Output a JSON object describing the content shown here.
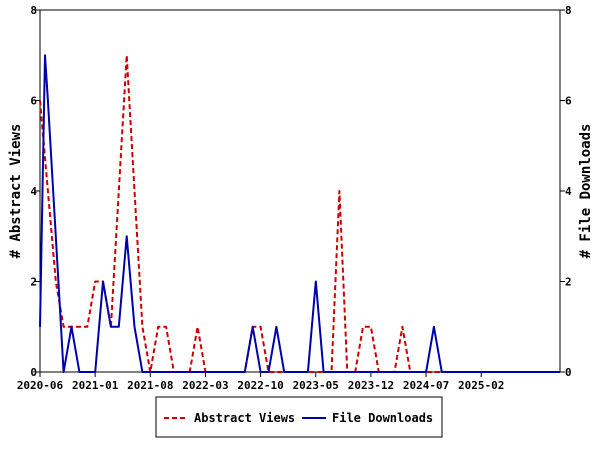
{
  "chart_data": {
    "type": "line",
    "xlabel": "",
    "ylabel_left": "# Abstract Views",
    "ylabel_right": "# File Downloads",
    "ylim": [
      0,
      8
    ],
    "yticks": [
      "0",
      "2",
      "4",
      "6",
      "8"
    ],
    "x_tick_labels": [
      "2020-06",
      "2021-01",
      "2021-08",
      "2022-03",
      "2022-10",
      "2023-05",
      "2023-12",
      "2024-07",
      "2025-02"
    ],
    "x_start": "2020-06",
    "x_end": "2025-12",
    "legend_position": "bottom-center",
    "grid": false,
    "series": [
      {
        "name": "Abstract Views",
        "color": "#cc0000",
        "dash": "dashed",
        "axis": "left",
        "points": [
          [
            "2020-06",
            6
          ],
          [
            "2020-07",
            4
          ],
          [
            "2020-08",
            2
          ],
          [
            "2020-09",
            1
          ],
          [
            "2020-10",
            1
          ],
          [
            "2020-11",
            1
          ],
          [
            "2020-12",
            1
          ],
          [
            "2021-01",
            2
          ],
          [
            "2021-02",
            2
          ],
          [
            "2021-03",
            1
          ],
          [
            "2021-04",
            4
          ],
          [
            "2021-05",
            7
          ],
          [
            "2021-06",
            4
          ],
          [
            "2021-07",
            1
          ],
          [
            "2021-08",
            0
          ],
          [
            "2021-09",
            1
          ],
          [
            "2021-10",
            1
          ],
          [
            "2021-11",
            0
          ],
          [
            "2021-12",
            0
          ],
          [
            "2022-01",
            0
          ],
          [
            "2022-02",
            1
          ],
          [
            "2022-03",
            0
          ],
          [
            "2022-04",
            0
          ],
          [
            "2022-05",
            0
          ],
          [
            "2022-06",
            0
          ],
          [
            "2022-07",
            0
          ],
          [
            "2022-08",
            0
          ],
          [
            "2022-09",
            1
          ],
          [
            "2022-10",
            1
          ],
          [
            "2022-11",
            0
          ],
          [
            "2022-12",
            0
          ],
          [
            "2023-01",
            0
          ],
          [
            "2023-02",
            0
          ],
          [
            "2023-03",
            0
          ],
          [
            "2023-04",
            0
          ],
          [
            "2023-05",
            0
          ],
          [
            "2023-06",
            0
          ],
          [
            "2023-07",
            0
          ],
          [
            "2023-08",
            4
          ],
          [
            "2023-09",
            0
          ],
          [
            "2023-10",
            0
          ],
          [
            "2023-11",
            1
          ],
          [
            "2023-12",
            1
          ],
          [
            "2024-01",
            0
          ],
          [
            "2024-02",
            0
          ],
          [
            "2024-03",
            0
          ],
          [
            "2024-04",
            1
          ],
          [
            "2024-05",
            0
          ],
          [
            "2024-06",
            0
          ],
          [
            "2024-07",
            0
          ],
          [
            "2024-08",
            0
          ],
          [
            "2024-09",
            0
          ],
          [
            "2024-10",
            0
          ],
          [
            "2024-11",
            0
          ],
          [
            "2024-12",
            0
          ],
          [
            "2025-01",
            0
          ],
          [
            "2025-02",
            0
          ],
          [
            "2025-03",
            0
          ],
          [
            "2025-04",
            0
          ],
          [
            "2025-05",
            0
          ],
          [
            "2025-06",
            0
          ],
          [
            "2025-07",
            0
          ],
          [
            "2025-08",
            0
          ],
          [
            "2025-09",
            0
          ],
          [
            "2025-10",
            0
          ],
          [
            "2025-11",
            0
          ],
          [
            "2025-12",
            0
          ]
        ]
      },
      {
        "name": "File Downloads",
        "color": "#0000aa",
        "dash": "solid",
        "axis": "right",
        "points": [
          [
            "2020-06",
            1
          ],
          [
            "2020-06-20",
            7
          ],
          [
            "2020-07",
            6
          ],
          [
            "2020-08",
            3
          ],
          [
            "2020-09",
            0
          ],
          [
            "2020-10",
            1
          ],
          [
            "2020-11",
            0
          ],
          [
            "2020-12",
            0
          ],
          [
            "2021-01",
            0
          ],
          [
            "2021-02",
            2
          ],
          [
            "2021-03",
            1
          ],
          [
            "2021-04",
            1
          ],
          [
            "2021-05",
            3
          ],
          [
            "2021-06",
            1
          ],
          [
            "2021-07",
            0
          ],
          [
            "2021-08",
            0
          ],
          [
            "2021-09",
            0
          ],
          [
            "2021-10",
            0
          ],
          [
            "2021-11",
            0
          ],
          [
            "2021-12",
            0
          ],
          [
            "2022-01",
            0
          ],
          [
            "2022-02",
            0
          ],
          [
            "2022-03",
            0
          ],
          [
            "2022-04",
            0
          ],
          [
            "2022-05",
            0
          ],
          [
            "2022-06",
            0
          ],
          [
            "2022-07",
            0
          ],
          [
            "2022-08",
            0
          ],
          [
            "2022-09",
            1
          ],
          [
            "2022-10",
            0
          ],
          [
            "2022-11",
            0
          ],
          [
            "2022-12",
            1
          ],
          [
            "2023-01",
            0
          ],
          [
            "2023-02",
            0
          ],
          [
            "2023-03",
            0
          ],
          [
            "2023-04",
            0
          ],
          [
            "2023-05",
            2
          ],
          [
            "2023-06",
            0
          ],
          [
            "2023-07",
            0
          ],
          [
            "2023-08",
            0
          ],
          [
            "2023-09",
            0
          ],
          [
            "2023-10",
            0
          ],
          [
            "2023-11",
            0
          ],
          [
            "2023-12",
            0
          ],
          [
            "2024-01",
            0
          ],
          [
            "2024-02",
            0
          ],
          [
            "2024-03",
            0
          ],
          [
            "2024-04",
            0
          ],
          [
            "2024-05",
            0
          ],
          [
            "2024-06",
            0
          ],
          [
            "2024-07",
            0
          ],
          [
            "2024-08",
            1
          ],
          [
            "2024-09",
            0
          ],
          [
            "2024-10",
            0
          ],
          [
            "2024-11",
            0
          ],
          [
            "2024-12",
            0
          ],
          [
            "2025-01",
            0
          ],
          [
            "2025-02",
            0
          ],
          [
            "2025-03",
            0
          ],
          [
            "2025-04",
            0
          ],
          [
            "2025-05",
            0
          ],
          [
            "2025-06",
            0
          ],
          [
            "2025-07",
            0
          ],
          [
            "2025-08",
            0
          ],
          [
            "2025-09",
            0
          ],
          [
            "2025-10",
            0
          ],
          [
            "2025-11",
            0
          ],
          [
            "2025-12",
            0
          ]
        ]
      }
    ]
  }
}
